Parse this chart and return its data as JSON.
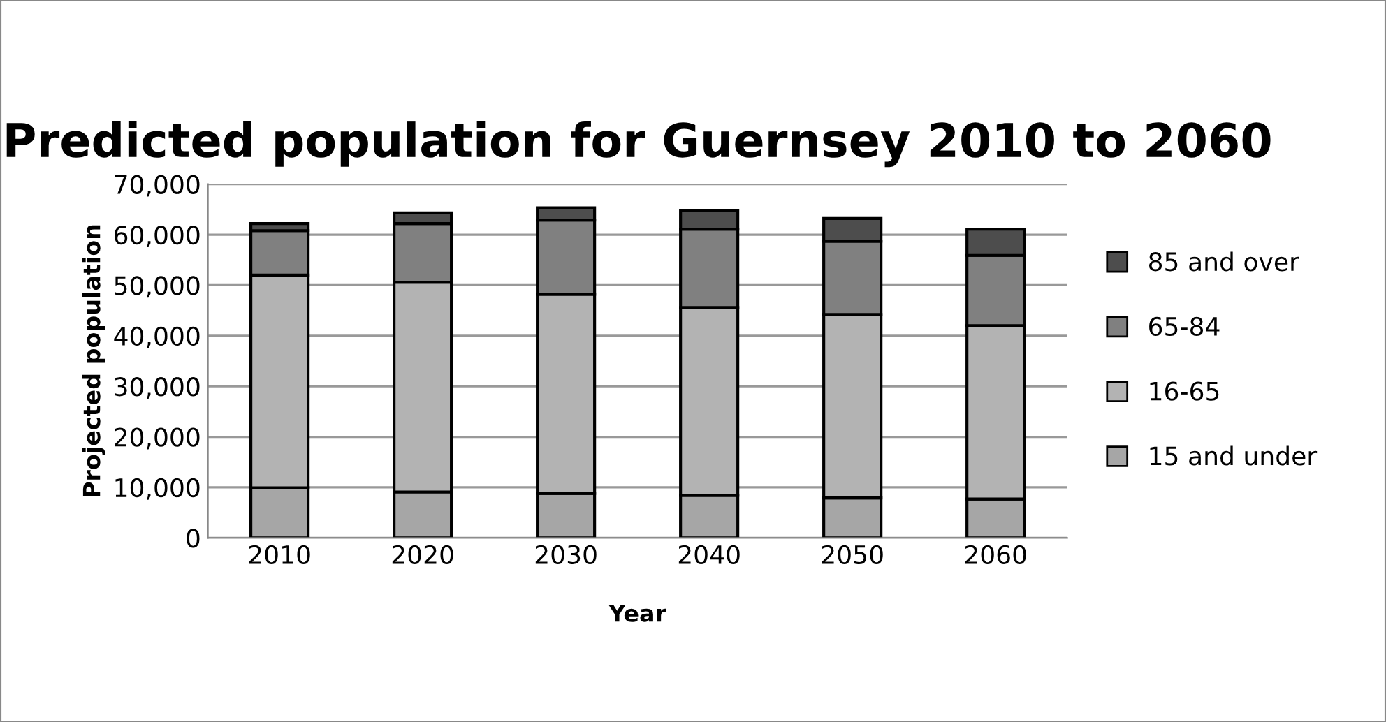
{
  "chart_data": {
    "type": "bar",
    "title": "Predicted population for Guernsey 2010 to 2060",
    "xlabel": "Year",
    "ylabel": "Projected population",
    "categories": [
      "2010",
      "2020",
      "2030",
      "2040",
      "2050",
      "2060"
    ],
    "stacked": true,
    "series": [
      {
        "name": "15 and under",
        "color": "#a6a6a6",
        "values": [
          9900,
          9100,
          8800,
          8400,
          7900,
          7700
        ]
      },
      {
        "name": "16-65",
        "color": "#b3b3b3",
        "values": [
          42100,
          41500,
          39400,
          37200,
          36300,
          34300
        ]
      },
      {
        "name": "65-84",
        "color": "#808080",
        "values": [
          8800,
          11600,
          14700,
          15500,
          14500,
          13900
        ]
      },
      {
        "name": "85 and over",
        "color": "#4d4d4d",
        "values": [
          1400,
          2100,
          2400,
          3700,
          4500,
          5200
        ]
      }
    ],
    "ylim": [
      0,
      70000
    ],
    "yticks": [
      {
        "value": 0,
        "label": "0"
      },
      {
        "value": 10000,
        "label": "10,000"
      },
      {
        "value": 20000,
        "label": "20,000"
      },
      {
        "value": 30000,
        "label": "30,000"
      },
      {
        "value": 40000,
        "label": "40,000"
      },
      {
        "value": 50000,
        "label": "50,000"
      },
      {
        "value": 60000,
        "label": "60,000"
      },
      {
        "value": 70000,
        "label": "70,000"
      }
    ],
    "grid": "y",
    "legend": "right"
  }
}
